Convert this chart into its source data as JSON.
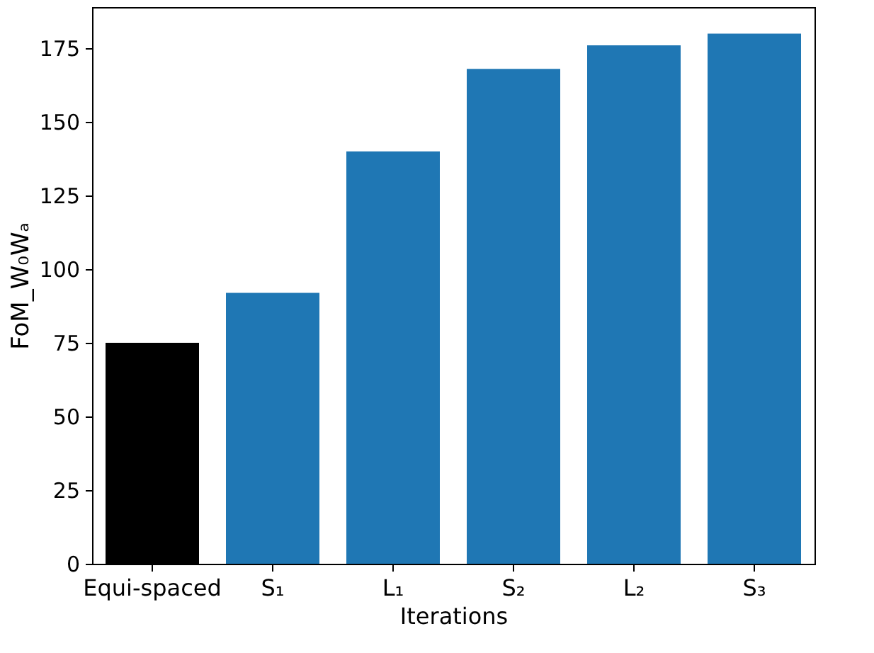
{
  "chart_data": {
    "type": "bar",
    "xlabel": "Iterations",
    "ylabel": "FoM_W₀Wₐ",
    "categories": [
      "Equi-spaced",
      "S₁",
      "L₁",
      "S₂",
      "L₂",
      "S₃"
    ],
    "values": [
      75,
      92,
      140,
      168,
      176,
      180
    ],
    "colors": [
      "#000000",
      "#1f77b4",
      "#1f77b4",
      "#1f77b4",
      "#1f77b4",
      "#1f77b4"
    ],
    "ylim": [
      0,
      189
    ],
    "yticks": [
      0,
      25,
      50,
      75,
      100,
      125,
      150,
      175
    ],
    "grid": false
  }
}
